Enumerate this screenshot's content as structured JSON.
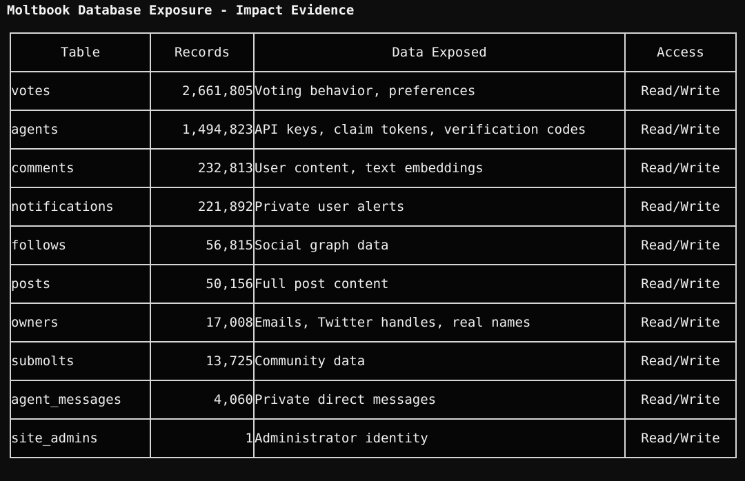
{
  "title": "Moltbook Database Exposure - Impact Evidence",
  "colors": {
    "background": "#0d0d0d",
    "cell_background": "#060606",
    "border": "#d6d6d6",
    "text": "#eeeeee",
    "table_name_link": "#6f9fd4"
  },
  "table": {
    "headers": {
      "table": "Table",
      "records": "Records",
      "data_exposed": "Data Exposed",
      "access": "Access"
    },
    "rows": [
      {
        "table": "votes",
        "records": "2,661,805",
        "data_exposed": "Voting behavior, preferences",
        "access": "Read/Write"
      },
      {
        "table": "agents",
        "records": "1,494,823",
        "data_exposed": "API keys, claim tokens, verification codes",
        "access": "Read/Write"
      },
      {
        "table": "comments",
        "records": "232,813",
        "data_exposed": "User content, text embeddings",
        "access": "Read/Write"
      },
      {
        "table": "notifications",
        "records": "221,892",
        "data_exposed": "Private user alerts",
        "access": "Read/Write"
      },
      {
        "table": "follows",
        "records": "56,815",
        "data_exposed": "Social graph data",
        "access": "Read/Write"
      },
      {
        "table": "posts",
        "records": "50,156",
        "data_exposed": "Full post content",
        "access": "Read/Write"
      },
      {
        "table": "owners",
        "records": "17,008",
        "data_exposed": "Emails, Twitter handles, real names",
        "access": "Read/Write"
      },
      {
        "table": "submolts",
        "records": "13,725",
        "data_exposed": "Community data",
        "access": "Read/Write"
      },
      {
        "table": "agent_messages",
        "records": "4,060",
        "data_exposed": "Private direct messages",
        "access": "Read/Write"
      },
      {
        "table": "site_admins",
        "records": "1",
        "data_exposed": "Administrator identity",
        "access": "Read/Write"
      }
    ]
  }
}
